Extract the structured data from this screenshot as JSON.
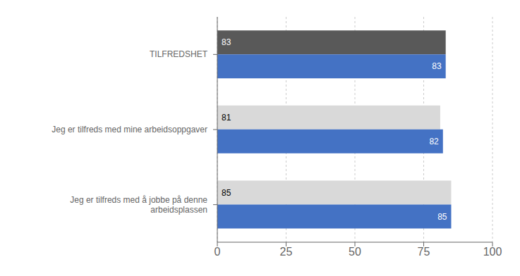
{
  "chart_data": {
    "type": "bar",
    "orientation": "horizontal",
    "categories": [
      "Jeg er tilfreds med å jobbe på denne\narbeidsplassen",
      "Jeg er tilfreds med mine arbeidsoppgaver",
      "TILFREDSHET"
    ],
    "series": [
      {
        "colors": [
          "#d9d9d9",
          "#d9d9d9",
          "#595959"
        ],
        "values": [
          85,
          81,
          83
        ]
      },
      {
        "color": "#4472c4",
        "values": [
          85,
          82,
          83
        ]
      }
    ],
    "xlim": [
      0,
      100
    ],
    "xticks": [
      0,
      25,
      50,
      75,
      100
    ],
    "grid": true,
    "data_labels": true
  }
}
